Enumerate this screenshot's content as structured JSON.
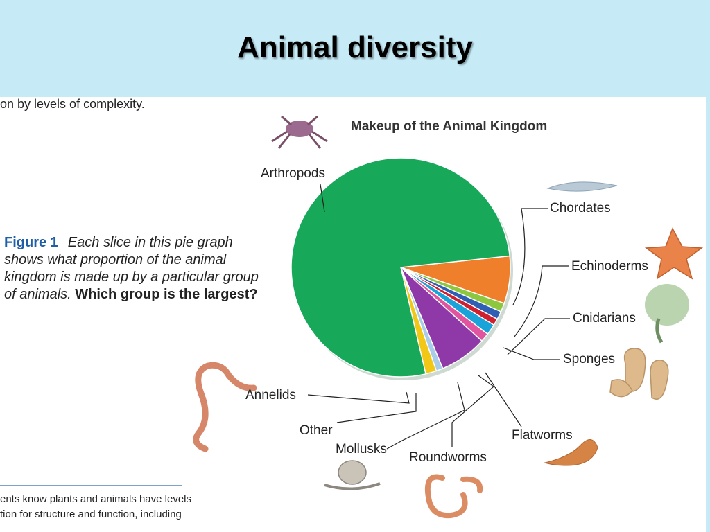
{
  "slide": {
    "title": "Animal diversity"
  },
  "text": {
    "top_fragment": "on by levels of complexity.",
    "figure_label": "Figure 1",
    "caption_body": "Each slice in this pie graph shows what proportion of the animal kingdom is made up by a particular group of animals.",
    "caption_question": "Which group is the largest?",
    "bottom_line1": "ents know plants and animals have levels",
    "bottom_line2": "tion for structure and function, including"
  },
  "colors": {
    "background": "#c6ebf7",
    "caption_label": "#1f5fa8"
  },
  "chart_data": {
    "type": "pie",
    "title": "Makeup of the Animal Kingdom",
    "slices": [
      {
        "label": "Chordates",
        "value": 7.0,
        "color": "#f07f2c"
      },
      {
        "label": "Echinoderms",
        "value": 1.3,
        "color": "#8dc63f"
      },
      {
        "label": "Cnidarians",
        "value": 1.2,
        "color": "#2e5fb5"
      },
      {
        "label": "Sponges",
        "value": 1.0,
        "color": "#cf2030"
      },
      {
        "label": "Flatworms",
        "value": 1.6,
        "color": "#19a3d9"
      },
      {
        "label": "Roundworms",
        "value": 1.3,
        "color": "#e0559d"
      },
      {
        "label": "Mollusks",
        "value": 7.0,
        "color": "#8f39a8"
      },
      {
        "label": "Other",
        "value": 1.0,
        "color": "#a9cde9"
      },
      {
        "label": "Annelids",
        "value": 1.6,
        "color": "#f3c716"
      },
      {
        "label": "Arthropods",
        "value": 77.0,
        "color": "#18a85a"
      }
    ],
    "start_angle_deg": -6,
    "direction": "clockwise"
  }
}
